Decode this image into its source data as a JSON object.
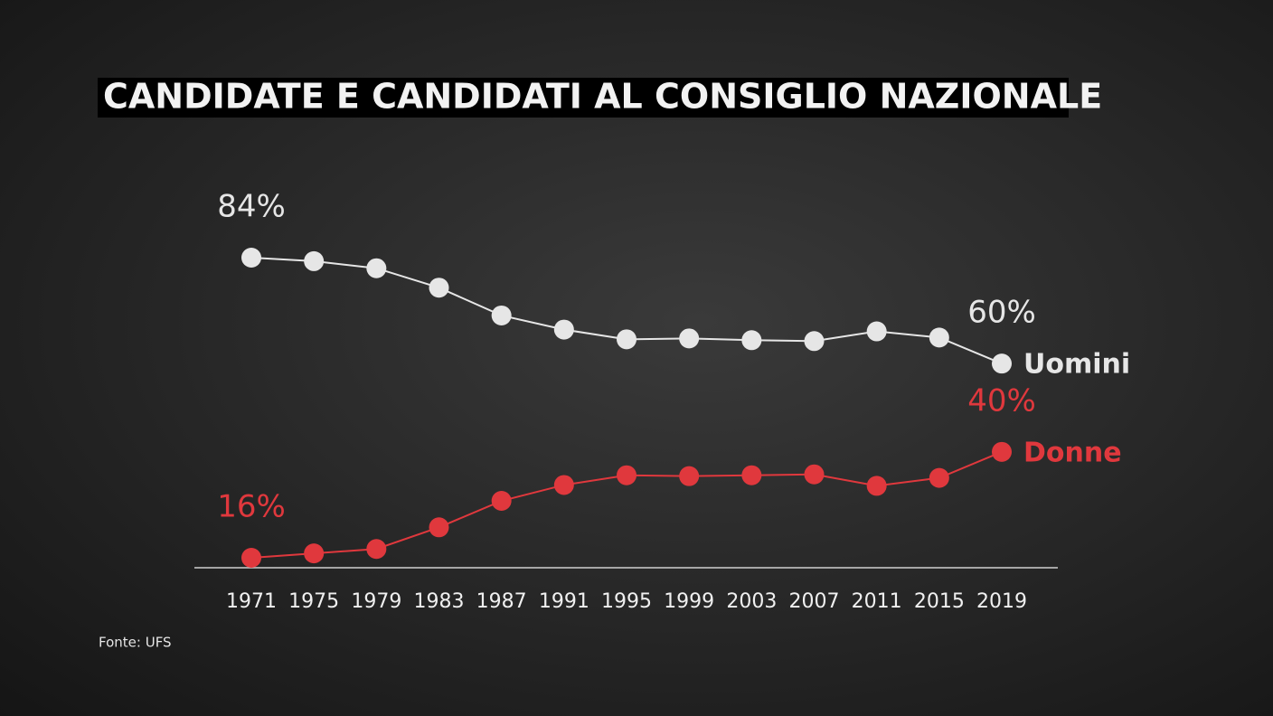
{
  "chart_data": {
    "type": "line",
    "title": "CANDIDATE E CANDIDATI AL CONSIGLIO NAZIONALE",
    "categories": [
      "1971",
      "1975",
      "1979",
      "1983",
      "1987",
      "1991",
      "1995",
      "1999",
      "2003",
      "2007",
      "2011",
      "2015",
      "2019"
    ],
    "series": [
      {
        "name": "Uomini",
        "color": "#e6e6e6",
        "values": [
          84,
          83.2,
          81.6,
          77.2,
          70.9,
          67.7,
          65.5,
          65.7,
          65.3,
          65.1,
          67.3,
          65.9,
          60
        ],
        "value_labels": [
          "84%",
          null,
          null,
          null,
          null,
          null,
          null,
          null,
          null,
          null,
          null,
          null,
          "60%"
        ]
      },
      {
        "name": "Donne",
        "color": "#e0383d",
        "values": [
          16,
          17.0,
          18.0,
          22.9,
          28.9,
          32.5,
          34.7,
          34.5,
          34.7,
          34.9,
          32.3,
          34.1,
          40
        ],
        "value_labels": [
          "16%",
          null,
          null,
          null,
          null,
          null,
          null,
          null,
          null,
          null,
          null,
          null,
          "40%"
        ]
      }
    ],
    "source": "Fonte: UFS"
  }
}
